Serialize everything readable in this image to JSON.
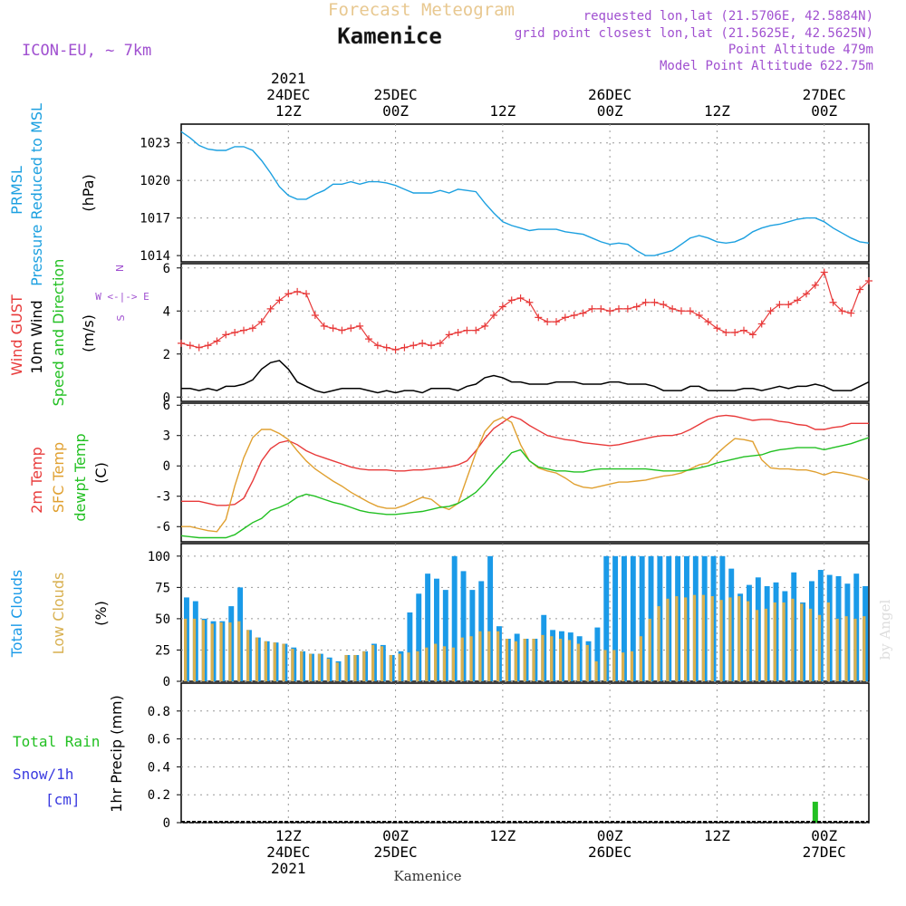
{
  "header": {
    "forecast_title": "Forecast Meteogram",
    "location": "Kamenice",
    "model": "ICON-EU, ~ 7km",
    "requested": "requested lon,lat (21.5706E, 42.5884N)",
    "gridpoint": "grid point closest lon,lat (21.5625E, 42.5625N)",
    "point_altitude": "Point Altitude 479m",
    "model_altitude": "Model Point Altitude 622.75m",
    "watermark": "by Angel",
    "footer_location": "Kamenice"
  },
  "time_axis": {
    "top_labels": [
      {
        "t": 12,
        "lines": [
          "2021",
          "24DEC",
          "12Z"
        ]
      },
      {
        "t": 24,
        "lines": [
          "25DEC",
          "00Z"
        ]
      },
      {
        "t": 36,
        "lines": [
          "12Z"
        ]
      },
      {
        "t": 48,
        "lines": [
          "26DEC",
          "00Z"
        ]
      },
      {
        "t": 60,
        "lines": [
          "12Z"
        ]
      },
      {
        "t": 72,
        "lines": [
          "27DEC",
          "00Z"
        ]
      }
    ],
    "bottom_labels": [
      {
        "t": 12,
        "lines": [
          "12Z",
          "24DEC",
          "2021"
        ]
      },
      {
        "t": 24,
        "lines": [
          "00Z",
          "25DEC"
        ]
      },
      {
        "t": 36,
        "lines": [
          "12Z"
        ]
      },
      {
        "t": 48,
        "lines": [
          "00Z",
          "26DEC"
        ]
      },
      {
        "t": 60,
        "lines": [
          "12Z"
        ]
      },
      {
        "t": 72,
        "lines": [
          "00Z",
          "27DEC"
        ]
      }
    ]
  },
  "panels": {
    "pressure": {
      "labels": [
        "PRMSL",
        "Pressure Reduced to MSL"
      ],
      "unit": "(hPa)"
    },
    "wind": {
      "labels": [
        "Wind GUST",
        "10m Wind",
        "Speed and Direction"
      ],
      "unit": "(m/s)",
      "compass": {
        "n": "N",
        "s": "S",
        "we": "W <-|-> E"
      }
    },
    "temp": {
      "labels": [
        "2m Temp",
        "SFC Temp",
        "dewpt Temp"
      ],
      "unit": "(C)"
    },
    "clouds": {
      "labels": [
        "Total Clouds",
        "Low Clouds"
      ],
      "unit": "(%)"
    },
    "precip": {
      "labels": [
        "Total Rain",
        "Snow/1h",
        "[cm]"
      ],
      "ylabel": "1hr Precip (mm)"
    }
  },
  "colors": {
    "prmsl": "#1ca0e0",
    "gust": "#e83a3a",
    "wind": "#000000",
    "temp2m": "#e83a3a",
    "sfc": "#e0a030",
    "dewpt": "#22c022",
    "total_cloud": "#1a9ae8",
    "low_cloud": "#d8b050",
    "rain": "#22c022",
    "snow": "#3a3ae0",
    "purple_text": "#a050d0",
    "orange_title": "#e8c890"
  },
  "chart_data": {
    "type": "line",
    "x_range_hours": [
      0,
      77
    ],
    "x_note": "hours from 24DEC 00Z",
    "prmsl": {
      "ylim": [
        1013.5,
        1024.5
      ],
      "ticks": [
        1014,
        1017,
        1020,
        1023
      ],
      "x": [
        0,
        1,
        2,
        3,
        4,
        5,
        6,
        7,
        8,
        9,
        10,
        11,
        12,
        13,
        14,
        15,
        16,
        17,
        18,
        19,
        20,
        21,
        22,
        23,
        24,
        25,
        26,
        27,
        28,
        29,
        30,
        31,
        32,
        33,
        34,
        35,
        36,
        37,
        38,
        39,
        40,
        41,
        42,
        43,
        44,
        45,
        46,
        47,
        48,
        49,
        50,
        51,
        52,
        53,
        54,
        55,
        56,
        57,
        58,
        59,
        60,
        61,
        62,
        63,
        64,
        65,
        66,
        67,
        68,
        69,
        70,
        71,
        72,
        73,
        74,
        75,
        76,
        77
      ],
      "values": [
        1023.9,
        1023.4,
        1022.8,
        1022.5,
        1022.4,
        1022.4,
        1022.7,
        1022.7,
        1022.4,
        1021.6,
        1020.6,
        1019.5,
        1018.8,
        1018.5,
        1018.5,
        1018.9,
        1019.2,
        1019.7,
        1019.7,
        1019.9,
        1019.7,
        1019.9,
        1019.9,
        1019.8,
        1019.6,
        1019.3,
        1019.0,
        1019.0,
        1019.0,
        1019.2,
        1019.0,
        1019.3,
        1019.2,
        1019.1,
        1018.2,
        1017.4,
        1016.7,
        1016.4,
        1016.2,
        1016.0,
        1016.1,
        1016.1,
        1016.1,
        1015.9,
        1015.8,
        1015.7,
        1015.4,
        1015.1,
        1014.9,
        1015.0,
        1014.9,
        1014.4,
        1014.0,
        1014.0,
        1014.2,
        1014.4,
        1014.9,
        1015.4,
        1015.6,
        1015.4,
        1015.1,
        1015.0,
        1015.1,
        1015.4,
        1015.9,
        1016.2,
        1016.4,
        1016.5,
        1016.7,
        1016.9,
        1017.0,
        1017.0,
        1016.7,
        1016.2,
        1015.8,
        1015.4,
        1015.1,
        1015.0
      ]
    },
    "wind": {
      "ylim": [
        -0.2,
        6.2
      ],
      "ticks": [
        0,
        2,
        4,
        6
      ],
      "x": [
        0,
        1,
        2,
        3,
        4,
        5,
        6,
        7,
        8,
        9,
        10,
        11,
        12,
        13,
        14,
        15,
        16,
        17,
        18,
        19,
        20,
        21,
        22,
        23,
        24,
        25,
        26,
        27,
        28,
        29,
        30,
        31,
        32,
        33,
        34,
        35,
        36,
        37,
        38,
        39,
        40,
        41,
        42,
        43,
        44,
        45,
        46,
        47,
        48,
        49,
        50,
        51,
        52,
        53,
        54,
        55,
        56,
        57,
        58,
        59,
        60,
        61,
        62,
        63,
        64,
        65,
        66,
        67,
        68,
        69,
        70,
        71,
        72,
        73,
        74,
        75,
        76,
        77
      ],
      "gust": [
        2.5,
        2.4,
        2.3,
        2.4,
        2.6,
        2.9,
        3.0,
        3.1,
        3.2,
        3.5,
        4.1,
        4.5,
        4.8,
        4.9,
        4.8,
        3.8,
        3.3,
        3.2,
        3.1,
        3.2,
        3.3,
        2.7,
        2.4,
        2.3,
        2.2,
        2.3,
        2.4,
        2.5,
        2.4,
        2.5,
        2.9,
        3.0,
        3.1,
        3.1,
        3.3,
        3.8,
        4.2,
        4.5,
        4.6,
        4.4,
        3.7,
        3.5,
        3.5,
        3.7,
        3.8,
        3.9,
        4.1,
        4.1,
        4.0,
        4.1,
        4.1,
        4.2,
        4.4,
        4.4,
        4.3,
        4.1,
        4.0,
        4.0,
        3.8,
        3.5,
        3.2,
        3.0,
        3.0,
        3.1,
        2.9,
        3.4,
        4.0,
        4.3,
        4.3,
        4.5,
        4.8,
        5.2,
        5.8,
        4.4,
        4.0,
        3.9,
        5.0,
        5.4
      ],
      "speed": [
        0.4,
        0.4,
        0.3,
        0.4,
        0.3,
        0.5,
        0.5,
        0.6,
        0.8,
        1.3,
        1.6,
        1.7,
        1.3,
        0.7,
        0.5,
        0.3,
        0.2,
        0.3,
        0.4,
        0.4,
        0.4,
        0.3,
        0.2,
        0.3,
        0.2,
        0.3,
        0.3,
        0.2,
        0.4,
        0.4,
        0.4,
        0.3,
        0.5,
        0.6,
        0.9,
        1.0,
        0.9,
        0.7,
        0.7,
        0.6,
        0.6,
        0.6,
        0.7,
        0.7,
        0.7,
        0.6,
        0.6,
        0.6,
        0.7,
        0.7,
        0.6,
        0.6,
        0.6,
        0.5,
        0.3,
        0.3,
        0.3,
        0.5,
        0.5,
        0.3,
        0.3,
        0.3,
        0.3,
        0.4,
        0.4,
        0.3,
        0.4,
        0.5,
        0.4,
        0.5,
        0.5,
        0.6,
        0.5,
        0.3,
        0.3,
        0.3,
        0.5,
        0.7
      ]
    },
    "temperature": {
      "ylim": [
        -7.5,
        6.2
      ],
      "ticks": [
        -6,
        -3,
        0,
        3,
        6
      ],
      "x": [
        0,
        1,
        2,
        3,
        4,
        5,
        6,
        7,
        8,
        9,
        10,
        11,
        12,
        13,
        14,
        15,
        16,
        17,
        18,
        19,
        20,
        21,
        22,
        23,
        24,
        25,
        26,
        27,
        28,
        29,
        30,
        31,
        32,
        33,
        34,
        35,
        36,
        37,
        38,
        39,
        40,
        41,
        42,
        43,
        44,
        45,
        46,
        47,
        48,
        49,
        50,
        51,
        52,
        53,
        54,
        55,
        56,
        57,
        58,
        59,
        60,
        61,
        62,
        63,
        64,
        65,
        66,
        67,
        68,
        69,
        70,
        71,
        72,
        73,
        74,
        75,
        76,
        77
      ],
      "temp_2m": [
        -3.5,
        -3.5,
        -3.5,
        -3.7,
        -3.9,
        -3.9,
        -3.8,
        -3.2,
        -1.5,
        0.5,
        1.7,
        2.3,
        2.5,
        2.1,
        1.5,
        1.1,
        0.8,
        0.5,
        0.2,
        -0.1,
        -0.3,
        -0.4,
        -0.4,
        -0.4,
        -0.5,
        -0.5,
        -0.4,
        -0.4,
        -0.3,
        -0.2,
        -0.1,
        0.1,
        0.5,
        1.5,
        2.7,
        3.7,
        4.3,
        4.9,
        4.6,
        4.0,
        3.5,
        3.0,
        2.8,
        2.6,
        2.5,
        2.3,
        2.2,
        2.1,
        2.0,
        2.1,
        2.3,
        2.5,
        2.7,
        2.9,
        3.0,
        3.0,
        3.2,
        3.6,
        4.1,
        4.6,
        4.9,
        5.0,
        4.9,
        4.7,
        4.5,
        4.6,
        4.6,
        4.4,
        4.3,
        4.1,
        4.0,
        3.6,
        3.6,
        3.8,
        3.9,
        4.2,
        4.2,
        4.2
      ],
      "sfc_temp": [
        -6.0,
        -6.0,
        -6.2,
        -6.4,
        -6.5,
        -5.3,
        -2.0,
        0.8,
        2.8,
        3.6,
        3.6,
        3.2,
        2.6,
        1.5,
        0.5,
        -0.3,
        -0.9,
        -1.5,
        -2.0,
        -2.6,
        -3.1,
        -3.6,
        -4.0,
        -4.2,
        -4.2,
        -3.9,
        -3.5,
        -3.1,
        -3.3,
        -4.0,
        -4.3,
        -3.7,
        -1.2,
        1.3,
        3.4,
        4.4,
        4.8,
        4.3,
        2.1,
        0.5,
        -0.2,
        -0.5,
        -0.7,
        -1.2,
        -1.8,
        -2.1,
        -2.2,
        -2.0,
        -1.8,
        -1.6,
        -1.6,
        -1.5,
        -1.4,
        -1.2,
        -1.0,
        -0.9,
        -0.7,
        -0.3,
        0.1,
        0.3,
        1.2,
        2.0,
        2.7,
        2.6,
        2.4,
        0.6,
        -0.2,
        -0.3,
        -0.3,
        -0.4,
        -0.4,
        -0.6,
        -0.9,
        -0.6,
        -0.7,
        -0.9,
        -1.1,
        -1.4
      ],
      "dewpt": [
        -6.9,
        -7.0,
        -7.1,
        -7.1,
        -7.1,
        -7.1,
        -6.8,
        -6.2,
        -5.6,
        -5.2,
        -4.4,
        -4.1,
        -3.7,
        -3.1,
        -2.8,
        -3.0,
        -3.3,
        -3.6,
        -3.8,
        -4.1,
        -4.4,
        -4.6,
        -4.7,
        -4.8,
        -4.8,
        -4.7,
        -4.6,
        -4.5,
        -4.3,
        -4.1,
        -4.0,
        -3.7,
        -3.2,
        -2.6,
        -1.7,
        -0.6,
        0.3,
        1.3,
        1.6,
        0.5,
        -0.1,
        -0.3,
        -0.5,
        -0.5,
        -0.6,
        -0.6,
        -0.4,
        -0.3,
        -0.3,
        -0.3,
        -0.3,
        -0.3,
        -0.3,
        -0.4,
        -0.5,
        -0.5,
        -0.5,
        -0.4,
        -0.2,
        0.0,
        0.3,
        0.5,
        0.7,
        0.9,
        1.0,
        1.1,
        1.4,
        1.6,
        1.7,
        1.8,
        1.8,
        1.8,
        1.6,
        1.8,
        2.0,
        2.2,
        2.5,
        2.8
      ]
    },
    "clouds": {
      "ylim": [
        0,
        110
      ],
      "ticks": [
        0,
        25,
        50,
        75,
        100
      ],
      "x": [
        0,
        1,
        2,
        3,
        4,
        5,
        6,
        7,
        8,
        9,
        10,
        11,
        12,
        13,
        14,
        15,
        16,
        17,
        18,
        19,
        20,
        21,
        22,
        23,
        24,
        25,
        26,
        27,
        28,
        29,
        30,
        31,
        32,
        33,
        34,
        35,
        36,
        37,
        38,
        39,
        40,
        41,
        42,
        43,
        44,
        45,
        46,
        47,
        48,
        49,
        50,
        51,
        52,
        53,
        54,
        55,
        56,
        57,
        58,
        59,
        60,
        61,
        62,
        63,
        64,
        65,
        66,
        67,
        68,
        69,
        70,
        71,
        72,
        73,
        74,
        75,
        76
      ],
      "total": [
        67,
        64,
        50,
        48,
        48,
        60,
        75,
        41,
        35,
        32,
        31,
        30,
        27,
        24,
        22,
        22,
        19,
        16,
        21,
        21,
        24,
        30,
        29,
        21,
        24,
        55,
        70,
        86,
        82,
        73,
        100,
        88,
        73,
        80,
        100,
        44,
        34,
        38,
        34,
        34,
        53,
        41,
        40,
        39,
        36,
        32,
        43,
        100,
        100,
        100,
        100,
        100,
        100,
        100,
        100,
        100,
        100,
        100,
        100,
        100,
        100,
        90,
        70,
        77,
        83,
        76,
        79,
        72,
        87,
        63,
        80,
        89,
        85,
        84,
        78,
        86,
        76
      ],
      "low": [
        50,
        50,
        49,
        46,
        47,
        47,
        48,
        41,
        35,
        32,
        31,
        30,
        26,
        24,
        22,
        22,
        18,
        15,
        21,
        21,
        24,
        29,
        28,
        21,
        22,
        23,
        24,
        27,
        30,
        28,
        27,
        35,
        36,
        40,
        40,
        40,
        34,
        32,
        34,
        34,
        37,
        36,
        34,
        33,
        30,
        29,
        16,
        25,
        25,
        23,
        24,
        36,
        50,
        60,
        66,
        68,
        67,
        69,
        69,
        68,
        65,
        67,
        68,
        64,
        57,
        58,
        63,
        63,
        66,
        62,
        58,
        53,
        63,
        50,
        52,
        50,
        52
      ]
    },
    "precip": {
      "ylim": [
        0,
        1.0
      ],
      "ticks": [
        0,
        0.2,
        0.4,
        0.6,
        0.8
      ],
      "rain": [
        {
          "t": 71,
          "value": 0.15
        }
      ],
      "snow": []
    }
  }
}
